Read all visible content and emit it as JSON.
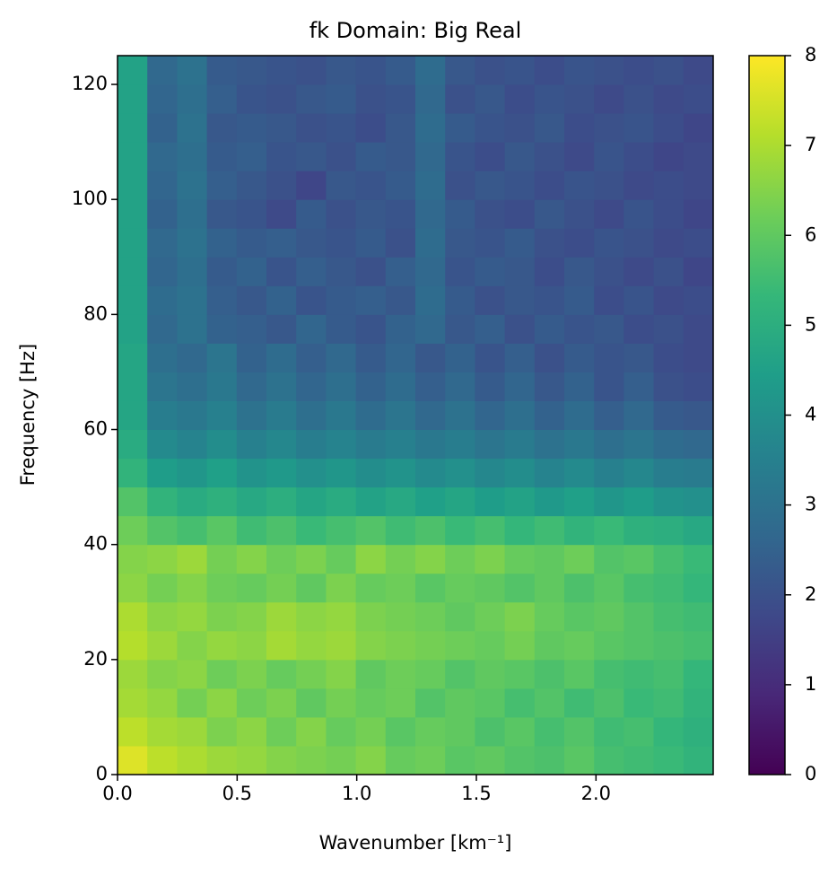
{
  "chart_data": {
    "type": "heatmap",
    "title": "fk Domain: Big Real",
    "xlabel": "Wavenumber [km⁻¹]",
    "ylabel": "Frequency [Hz]",
    "xlim": [
      0,
      2.49
    ],
    "ylim": [
      0,
      125
    ],
    "xticks": [
      {
        "value": 0,
        "label": "0.0"
      },
      {
        "value": 0.5,
        "label": "0.5"
      },
      {
        "value": 1,
        "label": "1.0"
      },
      {
        "value": 1.5,
        "label": "1.5"
      },
      {
        "value": 2,
        "label": "2.0"
      }
    ],
    "yticks": [
      0,
      20,
      40,
      60,
      80,
      100,
      120
    ],
    "colormap": "viridis",
    "clim": [
      0,
      8
    ],
    "cticks": [
      0,
      1,
      2,
      3,
      4,
      5,
      6,
      7,
      8
    ],
    "values": [
      [
        7.6,
        7.2,
        7.0,
        6.8,
        6.7,
        6.5,
        6.4,
        6.3,
        6.5,
        6.1,
        6.2,
        5.9,
        6.0,
        5.8,
        5.7,
        5.9,
        5.6,
        5.5,
        5.4,
        5.2
      ],
      [
        7.2,
        6.9,
        6.8,
        6.4,
        6.6,
        6.2,
        6.5,
        6.1,
        6.3,
        5.9,
        6.1,
        6.0,
        5.7,
        5.9,
        5.6,
        5.8,
        5.5,
        5.6,
        5.3,
        5.1
      ],
      [
        6.9,
        6.7,
        6.3,
        6.6,
        6.2,
        6.4,
        6.0,
        6.3,
        6.1,
        6.2,
        5.8,
        6.0,
        5.9,
        5.6,
        5.8,
        5.5,
        5.7,
        5.4,
        5.5,
        5.2
      ],
      [
        6.8,
        6.5,
        6.6,
        6.2,
        6.4,
        6.1,
        6.3,
        6.5,
        6.0,
        6.2,
        6.1,
        5.8,
        6.0,
        5.9,
        5.7,
        5.9,
        5.6,
        5.5,
        5.6,
        5.3
      ],
      [
        7.1,
        6.8,
        6.5,
        6.7,
        6.6,
        6.9,
        6.7,
        6.8,
        6.5,
        6.4,
        6.3,
        6.2,
        6.1,
        6.3,
        6.0,
        6.1,
        5.9,
        5.8,
        5.7,
        5.6
      ],
      [
        7.0,
        6.6,
        6.7,
        6.4,
        6.5,
        6.8,
        6.6,
        6.7,
        6.4,
        6.3,
        6.2,
        6.0,
        6.2,
        6.4,
        6.1,
        5.9,
        6.0,
        5.8,
        5.6,
        5.5
      ],
      [
        6.6,
        6.3,
        6.5,
        6.2,
        6.1,
        6.3,
        6.0,
        6.4,
        6.1,
        6.2,
        5.9,
        6.1,
        6.0,
        5.8,
        6.0,
        5.7,
        5.9,
        5.6,
        5.5,
        5.3
      ],
      [
        6.5,
        6.6,
        6.8,
        6.3,
        6.5,
        6.2,
        6.4,
        6.1,
        6.6,
        6.3,
        6.5,
        6.2,
        6.4,
        6.1,
        6.0,
        6.2,
        5.8,
        5.9,
        5.6,
        5.4
      ],
      [
        6.2,
        5.8,
        5.6,
        5.9,
        5.5,
        5.7,
        5.4,
        5.6,
        5.8,
        5.5,
        5.7,
        5.4,
        5.6,
        5.3,
        5.5,
        5.2,
        5.4,
        5.1,
        5.0,
        4.8
      ],
      [
        5.8,
        5.2,
        4.9,
        5.1,
        4.8,
        5.0,
        4.7,
        4.9,
        4.6,
        4.8,
        4.5,
        4.7,
        4.4,
        4.6,
        4.3,
        4.5,
        4.2,
        4.4,
        4.1,
        4.0
      ],
      [
        5.2,
        4.4,
        4.2,
        4.5,
        4.1,
        4.3,
        4.0,
        4.2,
        3.9,
        4.1,
        3.8,
        4.0,
        3.7,
        3.9,
        3.6,
        3.8,
        3.5,
        3.7,
        3.4,
        3.3
      ],
      [
        4.9,
        3.8,
        3.6,
        3.9,
        3.5,
        3.7,
        3.4,
        3.6,
        3.3,
        3.5,
        3.2,
        3.4,
        3.1,
        3.3,
        3.0,
        3.2,
        2.9,
        3.1,
        2.8,
        2.7
      ],
      [
        4.7,
        3.4,
        3.2,
        3.5,
        3.0,
        3.3,
        2.9,
        3.2,
        2.8,
        3.1,
        2.7,
        3.0,
        2.6,
        2.9,
        2.5,
        2.8,
        2.4,
        2.7,
        2.3,
        2.2
      ],
      [
        4.7,
        3.1,
        2.9,
        3.2,
        2.7,
        3.0,
        2.6,
        2.9,
        2.5,
        2.8,
        2.4,
        2.7,
        2.3,
        2.6,
        2.2,
        2.5,
        2.1,
        2.4,
        2.0,
        1.9
      ],
      [
        4.7,
        2.9,
        2.7,
        3.1,
        2.5,
        2.8,
        2.4,
        2.7,
        2.3,
        2.6,
        2.2,
        2.5,
        2.1,
        2.4,
        2.0,
        2.3,
        2.1,
        2.2,
        1.9,
        1.8
      ],
      [
        4.6,
        2.7,
        3.0,
        2.5,
        2.4,
        2.2,
        2.6,
        2.3,
        2.1,
        2.5,
        2.7,
        2.2,
        2.4,
        2.0,
        2.3,
        2.1,
        2.2,
        1.9,
        2.0,
        1.8
      ],
      [
        4.6,
        2.8,
        3.0,
        2.4,
        2.2,
        2.5,
        2.1,
        2.3,
        2.4,
        2.2,
        2.8,
        2.3,
        2.0,
        2.2,
        2.1,
        2.3,
        1.9,
        2.1,
        1.8,
        1.9
      ],
      [
        4.6,
        2.6,
        2.9,
        2.3,
        2.5,
        2.1,
        2.4,
        2.2,
        2.0,
        2.4,
        2.7,
        2.1,
        2.3,
        2.2,
        1.9,
        2.2,
        2.0,
        1.8,
        2.0,
        1.7
      ],
      [
        4.6,
        2.7,
        3.0,
        2.5,
        2.3,
        2.4,
        2.2,
        2.1,
        2.3,
        2.0,
        2.8,
        2.2,
        2.1,
        2.3,
        2.0,
        1.9,
        2.1,
        2.0,
        1.8,
        1.9
      ],
      [
        4.6,
        2.5,
        2.9,
        2.2,
        2.1,
        1.8,
        2.3,
        2.0,
        2.2,
        2.1,
        2.7,
        2.3,
        2.0,
        1.9,
        2.2,
        2.0,
        1.8,
        2.1,
        1.9,
        1.7
      ],
      [
        4.6,
        2.6,
        3.0,
        2.4,
        2.2,
        2.0,
        1.7,
        2.2,
        2.1,
        2.3,
        2.8,
        2.0,
        2.2,
        2.1,
        1.9,
        2.1,
        2.0,
        1.8,
        1.9,
        1.8
      ],
      [
        4.6,
        2.7,
        2.9,
        2.3,
        2.4,
        2.1,
        2.2,
        2.0,
        2.3,
        2.2,
        2.7,
        2.1,
        1.9,
        2.2,
        2.0,
        1.8,
        2.1,
        1.9,
        1.7,
        1.8
      ],
      [
        4.6,
        2.5,
        3.0,
        2.2,
        2.3,
        2.2,
        2.0,
        2.1,
        1.9,
        2.2,
        2.8,
        2.3,
        2.1,
        2.0,
        2.2,
        1.9,
        2.0,
        2.1,
        1.9,
        1.7
      ],
      [
        4.6,
        2.6,
        2.9,
        2.4,
        2.1,
        2.0,
        2.2,
        2.3,
        2.0,
        2.1,
        2.7,
        2.0,
        2.2,
        1.9,
        2.1,
        2.0,
        1.8,
        2.0,
        1.8,
        1.9
      ],
      [
        4.6,
        2.7,
        3.0,
        2.3,
        2.2,
        2.1,
        2.0,
        2.2,
        2.1,
        2.3,
        2.8,
        2.2,
        2.0,
        2.1,
        1.9,
        2.1,
        2.0,
        1.9,
        2.0,
        1.8
      ]
    ]
  }
}
